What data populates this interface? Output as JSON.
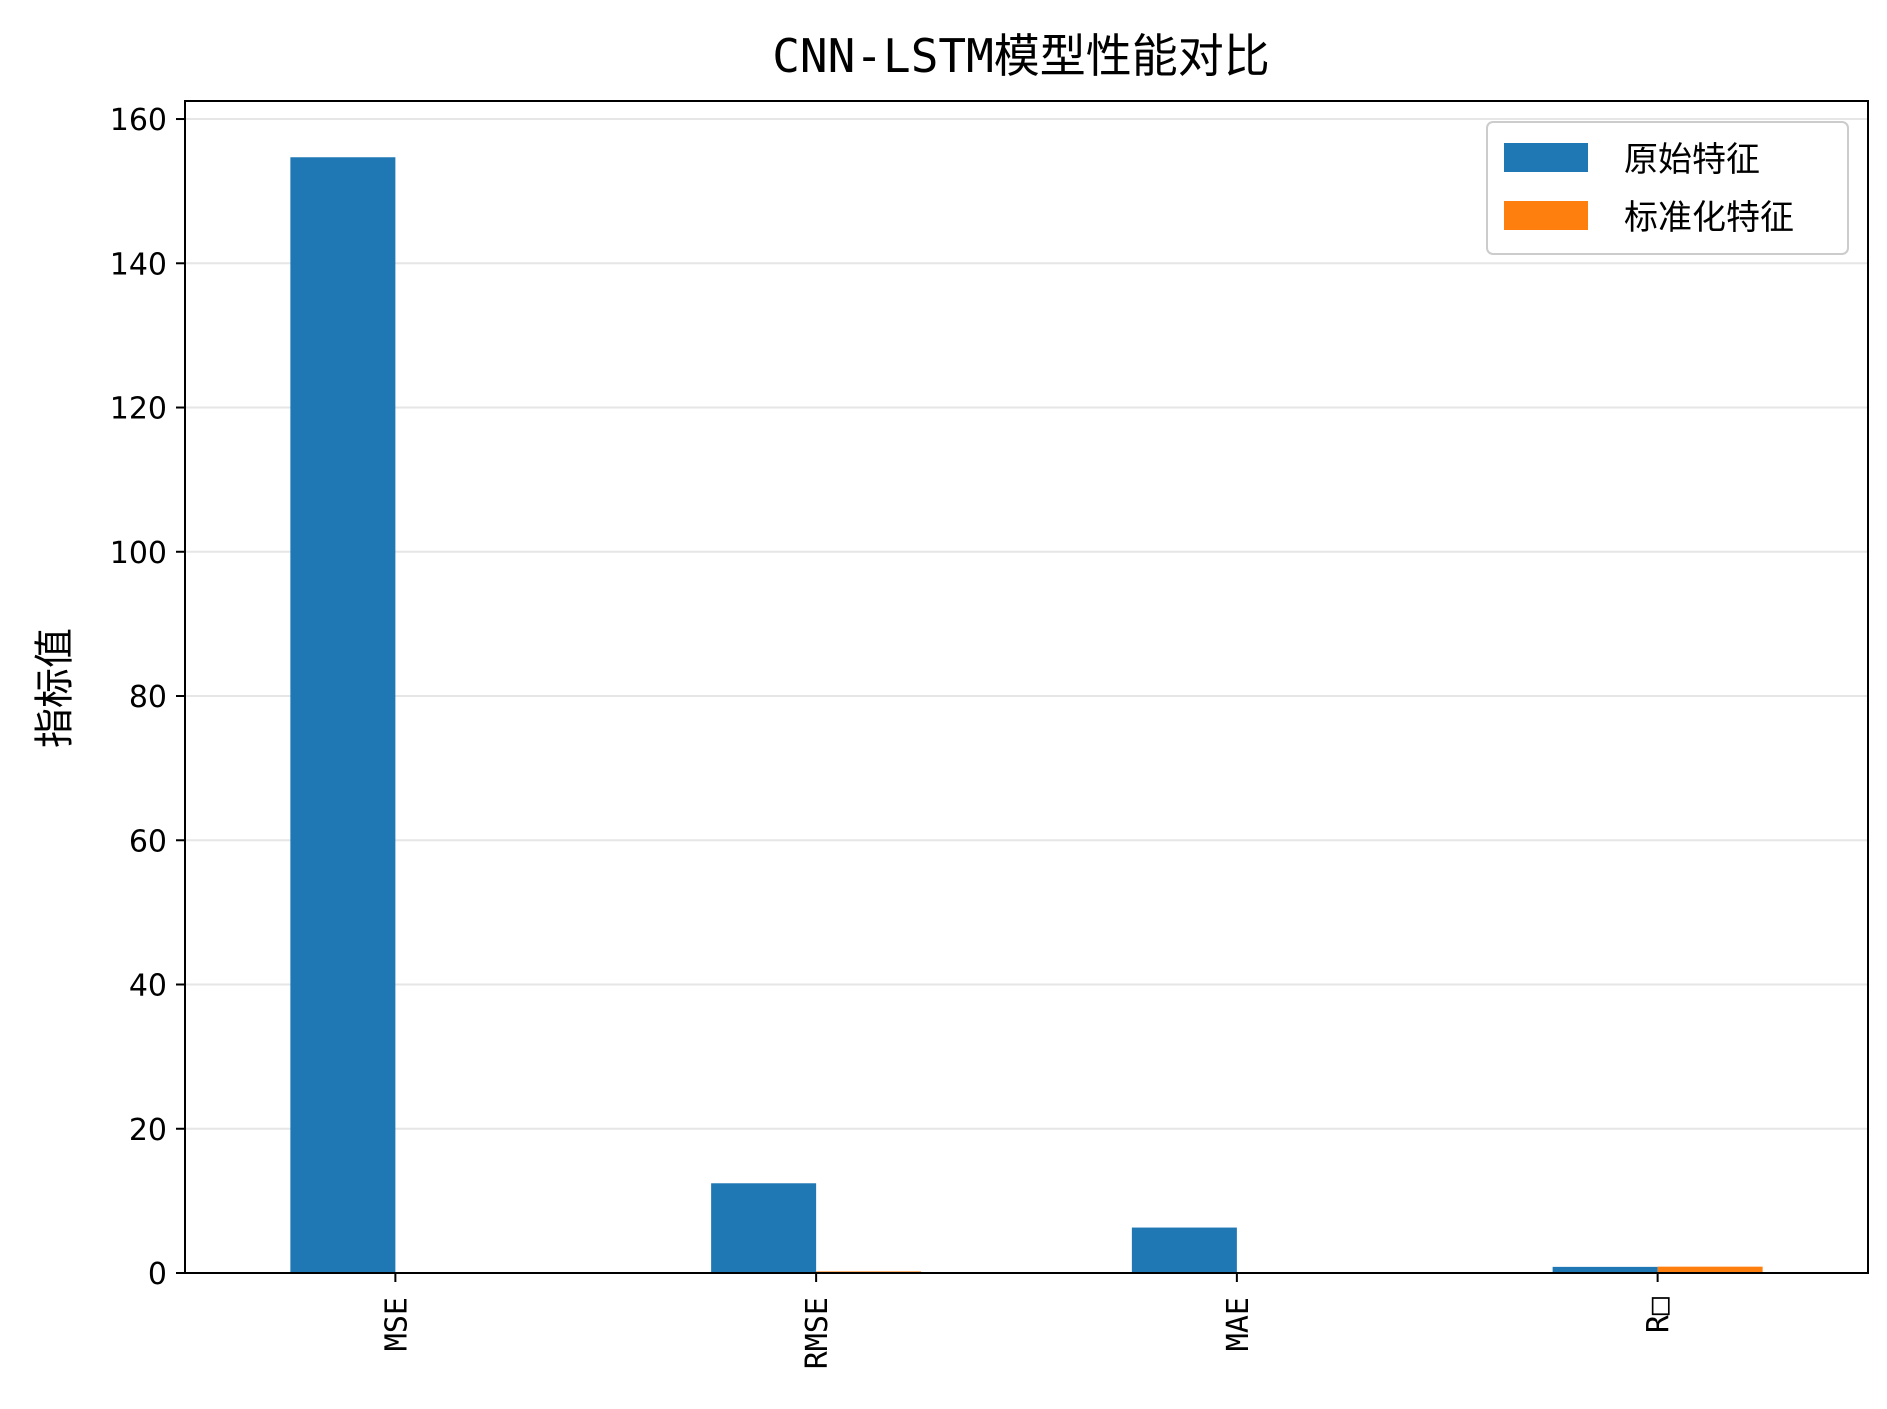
{
  "chart_data": {
    "type": "bar",
    "title": "CNN-LSTM模型性能对比",
    "xlabel": "",
    "ylabel": "指标值",
    "categories": [
      "MSE",
      "RMSE",
      "MAE",
      "R□"
    ],
    "series": [
      {
        "name": "原始特征",
        "values": [
          154.7,
          12.44,
          6.3,
          0.85
        ],
        "color": "#1f77b4"
      },
      {
        "name": "标准化特征",
        "values": [
          0.05,
          0.22,
          0.12,
          0.88
        ],
        "color": "#ff7f0e"
      }
    ],
    "ylim": [
      0,
      162.5
    ],
    "yticks": [
      0,
      20,
      40,
      60,
      80,
      100,
      120,
      140,
      160
    ],
    "grid": "y",
    "legend_position": "upper right"
  }
}
